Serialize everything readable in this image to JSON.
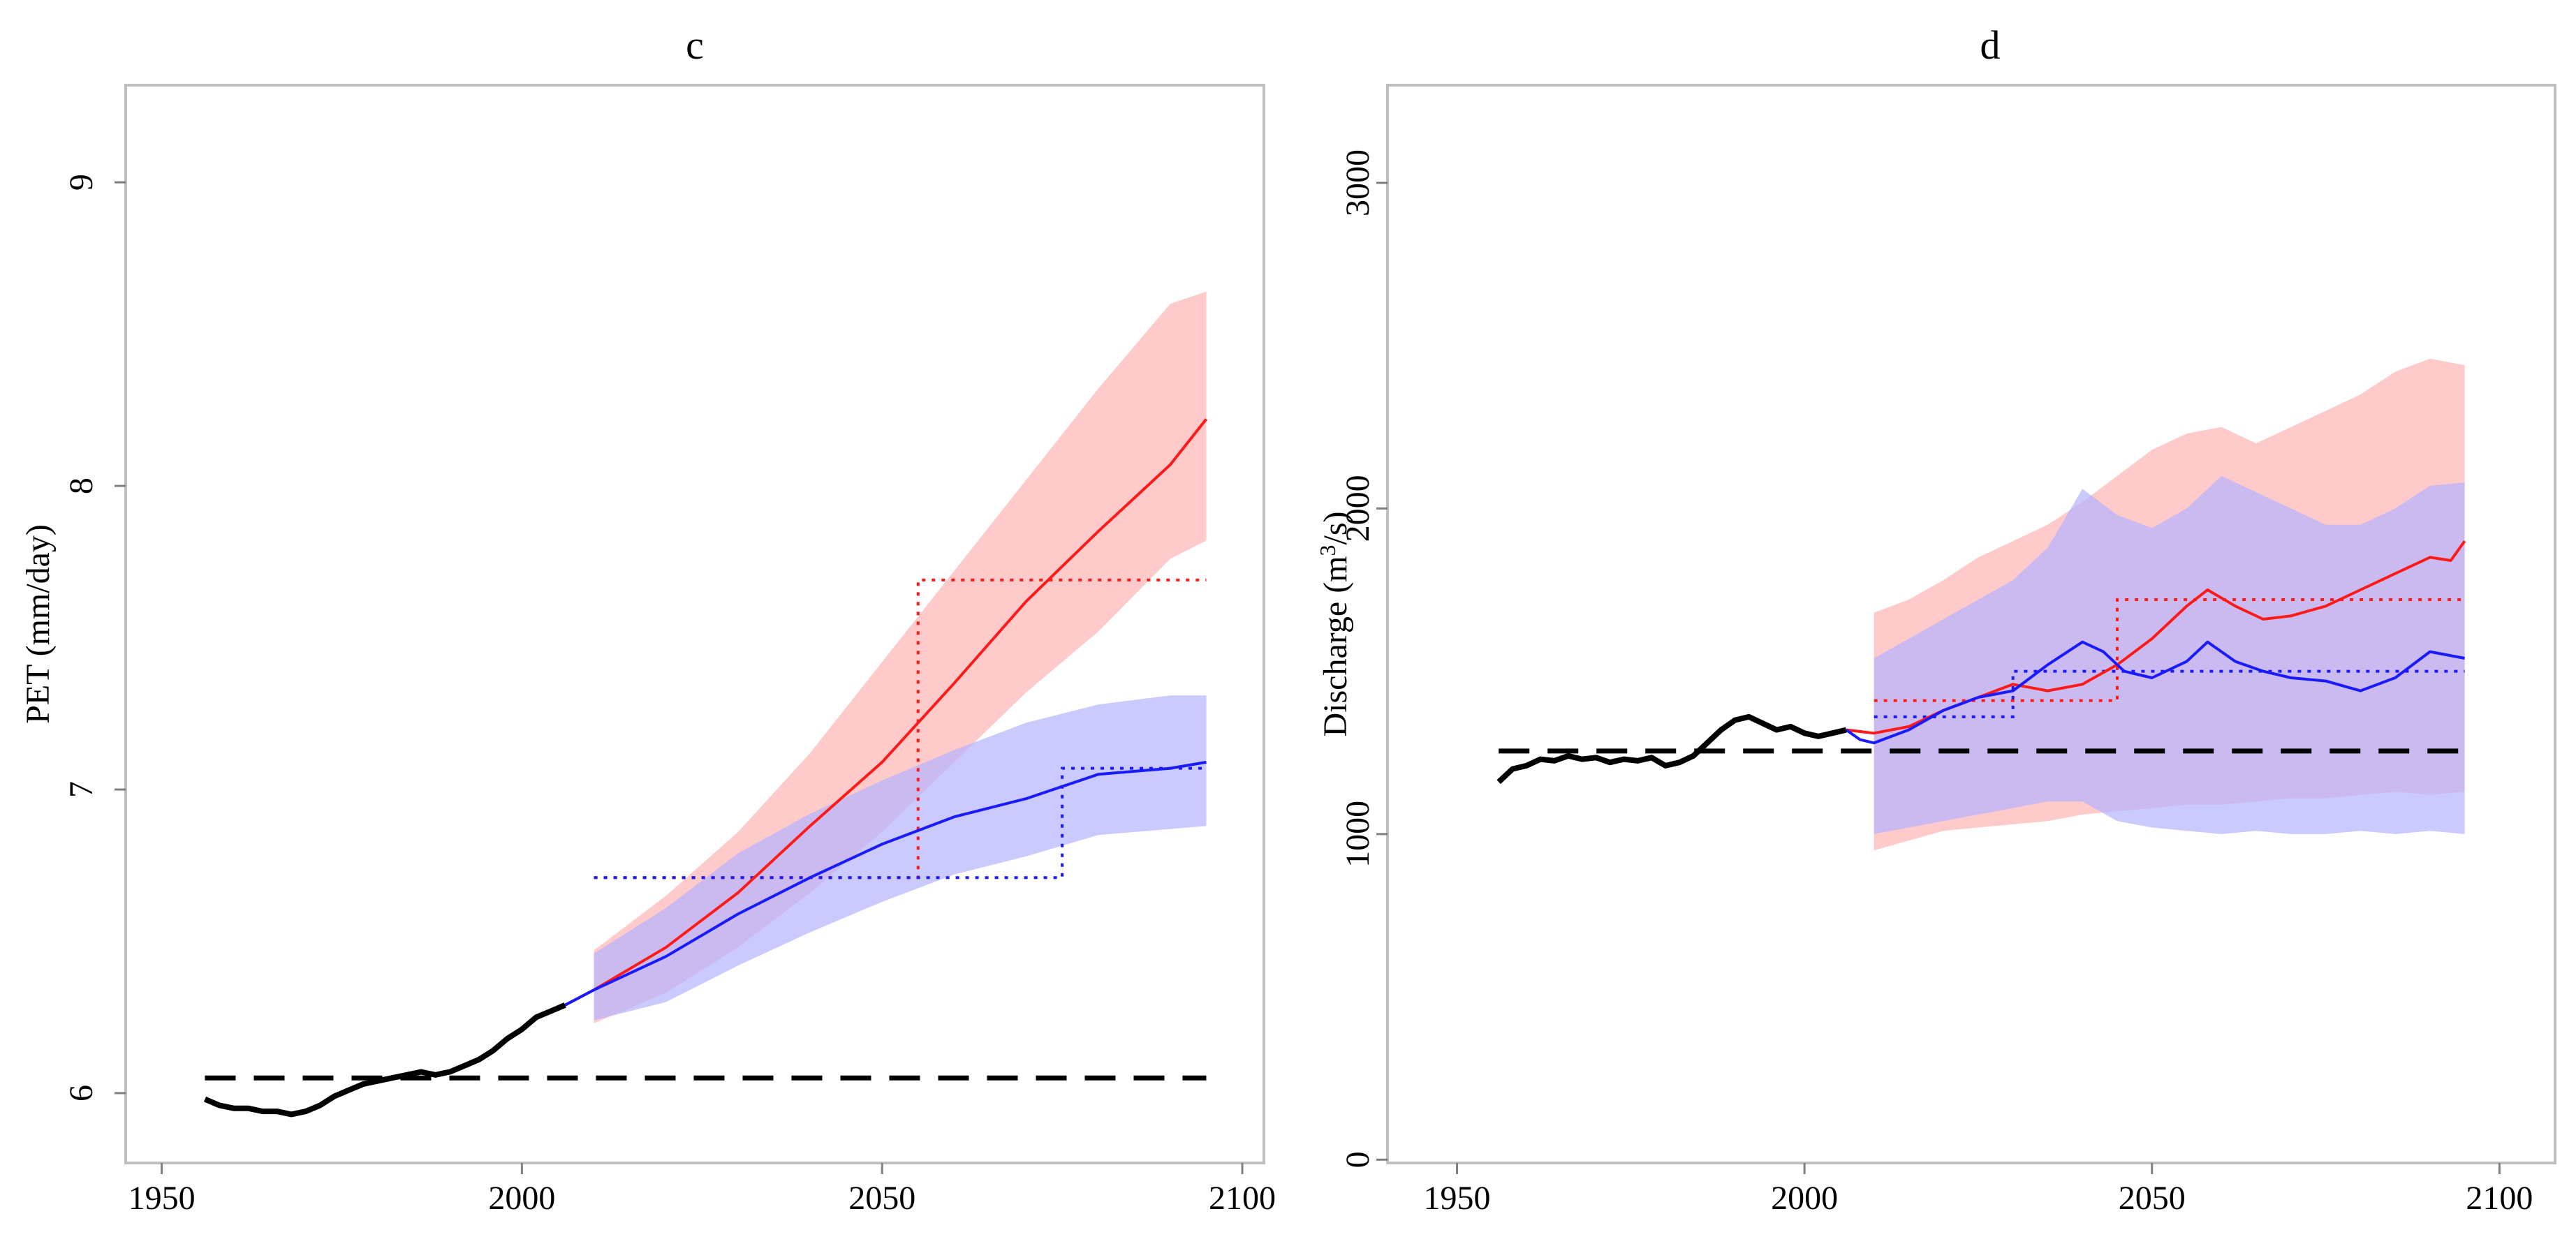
{
  "chart_data": [
    {
      "type": "line",
      "panel": "c",
      "title": "c",
      "xlabel": "",
      "ylabel": "PET (mm/day)",
      "xlim": [
        1945,
        2103
      ],
      "ylim": [
        5.77,
        9.32
      ],
      "xticks": [
        "1950",
        "2000",
        "2050",
        "2100"
      ],
      "yticks": [
        "6",
        "7",
        "8",
        "9"
      ],
      "colors": {
        "observed": "#000000",
        "scenario_a": "#ff1a1a",
        "scenario_b": "#1a1aff",
        "band_a": "#ffb3b3",
        "band_b": "#b3b3ff",
        "baseline": "#000000"
      },
      "observed": {
        "x": [
          1956,
          1958,
          1960,
          1962,
          1964,
          1966,
          1968,
          1970,
          1972,
          1974,
          1976,
          1978,
          1980,
          1982,
          1984,
          1986,
          1988,
          1990,
          1992,
          1994,
          1996,
          1998,
          2000,
          2002,
          2004,
          2006
        ],
        "y": [
          5.98,
          5.96,
          5.95,
          5.95,
          5.94,
          5.94,
          5.93,
          5.94,
          5.96,
          5.99,
          6.01,
          6.03,
          6.04,
          6.05,
          6.06,
          6.07,
          6.06,
          6.07,
          6.09,
          6.11,
          6.14,
          6.18,
          6.21,
          6.25,
          6.27,
          6.29
        ]
      },
      "baseline": {
        "x": [
          1956,
          2095
        ],
        "y": [
          6.05,
          6.05
        ]
      },
      "series": [
        {
          "name": "scenario_a",
          "x": [
            2006,
            2010,
            2020,
            2030,
            2040,
            2050,
            2060,
            2070,
            2080,
            2090,
            2095
          ],
          "y": [
            6.29,
            6.34,
            6.48,
            6.66,
            6.88,
            7.09,
            7.35,
            7.62,
            7.85,
            8.07,
            8.22
          ]
        },
        {
          "name": "scenario_b",
          "x": [
            2006,
            2010,
            2020,
            2030,
            2040,
            2050,
            2060,
            2070,
            2080,
            2090,
            2095
          ],
          "y": [
            6.29,
            6.34,
            6.45,
            6.59,
            6.71,
            6.82,
            6.91,
            6.97,
            7.05,
            7.07,
            7.09
          ]
        }
      ],
      "bands": [
        {
          "name": "band_a",
          "x": [
            2010,
            2020,
            2030,
            2040,
            2050,
            2060,
            2070,
            2080,
            2090,
            2095
          ],
          "lower": [
            6.23,
            6.33,
            6.48,
            6.66,
            6.86,
            7.09,
            7.32,
            7.52,
            7.76,
            7.82
          ],
          "upper": [
            6.47,
            6.65,
            6.86,
            7.12,
            7.42,
            7.72,
            8.02,
            8.32,
            8.6,
            8.64
          ]
        },
        {
          "name": "band_b",
          "x": [
            2010,
            2020,
            2030,
            2040,
            2050,
            2060,
            2070,
            2080,
            2090,
            2095
          ],
          "lower": [
            6.24,
            6.3,
            6.42,
            6.53,
            6.63,
            6.72,
            6.78,
            6.85,
            6.87,
            6.88
          ],
          "upper": [
            6.46,
            6.61,
            6.79,
            6.92,
            7.03,
            7.13,
            7.22,
            7.28,
            7.31,
            7.31
          ]
        }
      ],
      "period_means": [
        {
          "name": "scenario_a",
          "segments": [
            {
              "x": [
                2010,
                2055
              ],
              "y": 6.71
            },
            {
              "x": [
                2055,
                2095
              ],
              "y": 7.69
            }
          ]
        },
        {
          "name": "scenario_b",
          "segments": [
            {
              "x": [
                2010,
                2075
              ],
              "y": 6.71
            },
            {
              "x": [
                2075,
                2095
              ],
              "y": 7.07
            }
          ]
        }
      ]
    },
    {
      "type": "line",
      "panel": "d",
      "title": "d",
      "xlabel": "",
      "ylabel_prefix": "Discharge (m",
      "ylabel_sup": "3",
      "ylabel_suffix": "/s)",
      "xlim": [
        1940,
        2108
      ],
      "ylim": [
        -10,
        3300
      ],
      "xticks": [
        "1950",
        "2000",
        "2050",
        "2100"
      ],
      "yticks": [
        "0",
        "1000",
        "2000",
        "3000"
      ],
      "colors": {
        "observed": "#000000",
        "scenario_a": "#ff1a1a",
        "scenario_b": "#1a1aff",
        "band_a": "#ffb3b3",
        "band_b": "#b3b3ff",
        "baseline": "#000000"
      },
      "observed": {
        "x": [
          1956,
          1958,
          1960,
          1962,
          1964,
          1966,
          1968,
          1970,
          1972,
          1974,
          1976,
          1978,
          1980,
          1982,
          1984,
          1986,
          1988,
          1990,
          1992,
          1994,
          1996,
          1998,
          2000,
          2002,
          2004,
          2006
        ],
        "y": [
          1160,
          1200,
          1210,
          1230,
          1225,
          1240,
          1230,
          1235,
          1220,
          1230,
          1225,
          1235,
          1210,
          1220,
          1240,
          1280,
          1320,
          1350,
          1360,
          1340,
          1320,
          1330,
          1310,
          1300,
          1310,
          1320
        ]
      },
      "baseline": {
        "x": [
          1956,
          2095
        ],
        "y": [
          1255,
          1255
        ]
      },
      "series": [
        {
          "name": "scenario_a",
          "x": [
            2006,
            2010,
            2015,
            2020,
            2025,
            2030,
            2035,
            2040,
            2045,
            2050,
            2055,
            2058,
            2062,
            2066,
            2070,
            2075,
            2080,
            2085,
            2090,
            2093,
            2095
          ],
          "y": [
            1320,
            1310,
            1330,
            1380,
            1420,
            1460,
            1440,
            1460,
            1520,
            1600,
            1700,
            1750,
            1700,
            1660,
            1670,
            1700,
            1750,
            1800,
            1850,
            1840,
            1900
          ]
        },
        {
          "name": "scenario_b",
          "x": [
            2006,
            2008,
            2010,
            2015,
            2020,
            2025,
            2030,
            2035,
            2040,
            2043,
            2046,
            2050,
            2055,
            2058,
            2062,
            2066,
            2070,
            2075,
            2080,
            2085,
            2090,
            2095
          ],
          "y": [
            1320,
            1290,
            1280,
            1320,
            1380,
            1420,
            1440,
            1520,
            1590,
            1560,
            1500,
            1480,
            1530,
            1590,
            1530,
            1500,
            1480,
            1470,
            1440,
            1480,
            1560,
            1540
          ]
        }
      ],
      "bands": [
        {
          "name": "band_a",
          "x": [
            2010,
            2015,
            2020,
            2025,
            2030,
            2035,
            2040,
            2045,
            2050,
            2055,
            2060,
            2065,
            2070,
            2075,
            2080,
            2085,
            2090,
            2095
          ],
          "lower": [
            950,
            980,
            1010,
            1020,
            1030,
            1040,
            1060,
            1070,
            1080,
            1090,
            1090,
            1100,
            1110,
            1110,
            1120,
            1130,
            1120,
            1130
          ],
          "upper": [
            1680,
            1720,
            1780,
            1850,
            1900,
            1950,
            2020,
            2100,
            2180,
            2230,
            2250,
            2200,
            2250,
            2300,
            2350,
            2420,
            2460,
            2440
          ]
        },
        {
          "name": "band_b",
          "x": [
            2010,
            2015,
            2020,
            2025,
            2030,
            2035,
            2040,
            2045,
            2050,
            2055,
            2060,
            2065,
            2070,
            2075,
            2080,
            2085,
            2090,
            2095
          ],
          "lower": [
            1000,
            1020,
            1040,
            1060,
            1080,
            1100,
            1100,
            1040,
            1020,
            1010,
            1000,
            1010,
            1000,
            1000,
            1010,
            1000,
            1010,
            1000
          ],
          "upper": [
            1540,
            1600,
            1660,
            1720,
            1780,
            1880,
            2060,
            1980,
            1940,
            2000,
            2100,
            2050,
            2000,
            1950,
            1950,
            2000,
            2070,
            2080
          ]
        }
      ],
      "period_means": [
        {
          "name": "scenario_a",
          "segments": [
            {
              "x": [
                2010,
                2045
              ],
              "y": 1410
            },
            {
              "x": [
                2045,
                2095
              ],
              "y": 1720
            }
          ]
        },
        {
          "name": "scenario_b",
          "segments": [
            {
              "x": [
                2010,
                2030
              ],
              "y": 1360
            },
            {
              "x": [
                2030,
                2095
              ],
              "y": 1500
            }
          ]
        }
      ]
    }
  ]
}
